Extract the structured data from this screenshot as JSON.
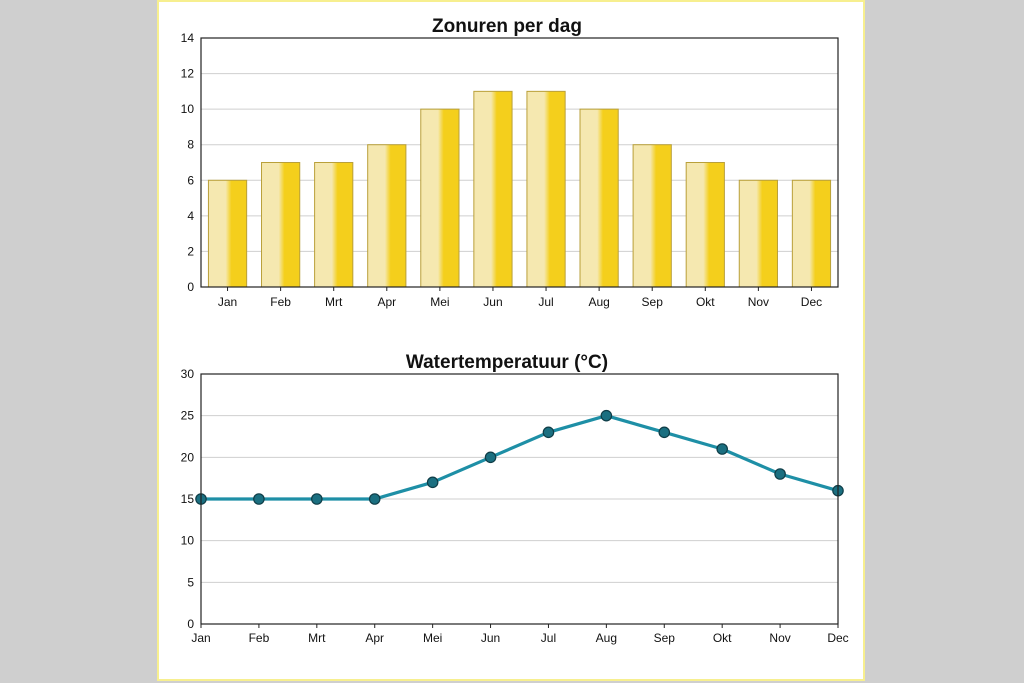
{
  "chart_data": [
    {
      "type": "bar",
      "title": "Zonuren per dag",
      "categories": [
        "Jan",
        "Feb",
        "Mrt",
        "Apr",
        "Mei",
        "Jun",
        "Jul",
        "Aug",
        "Sep",
        "Okt",
        "Nov",
        "Dec"
      ],
      "values": [
        6,
        7,
        7,
        8,
        10,
        11,
        11,
        10,
        8,
        7,
        6,
        6
      ],
      "ylim": [
        0,
        14
      ],
      "yticks": [
        0,
        2,
        4,
        6,
        8,
        10,
        12,
        14
      ],
      "grid": true,
      "colors": {
        "bar_light": "#f5e8b0",
        "bar_dark": "#f4cf1c",
        "bar_edge": "#b9a03a"
      }
    },
    {
      "type": "line",
      "title": "Watertemperatuur (°C)",
      "categories": [
        "Jan",
        "Feb",
        "Mrt",
        "Apr",
        "Mei",
        "Jun",
        "Jul",
        "Aug",
        "Sep",
        "Okt",
        "Nov",
        "Dec"
      ],
      "values": [
        15,
        15,
        15,
        15,
        17,
        20,
        23,
        25,
        23,
        21,
        18,
        16
      ],
      "ylim": [
        0,
        30
      ],
      "yticks": [
        0,
        5,
        10,
        15,
        20,
        25,
        30
      ],
      "grid": true,
      "colors": {
        "line": "#1e8fa6",
        "marker": "#1b6f80",
        "marker_edge": "#0f3d47"
      }
    }
  ]
}
